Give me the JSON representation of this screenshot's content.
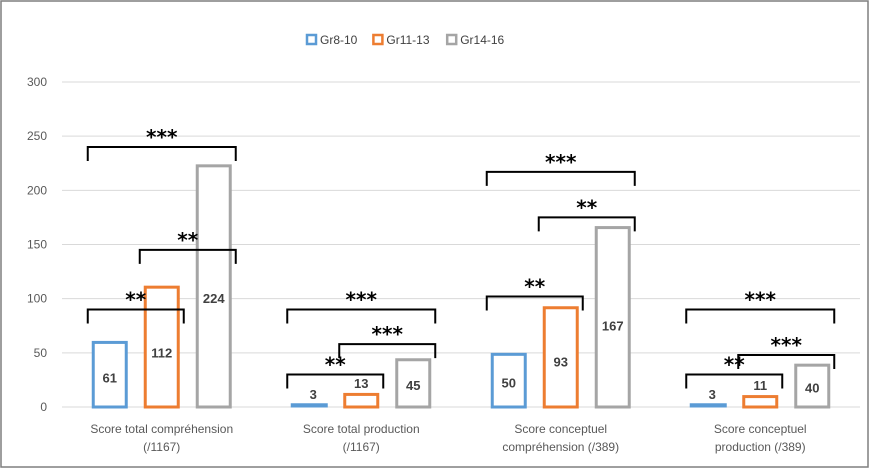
{
  "chart_data": {
    "type": "bar",
    "categories": [
      [
        "Score total compréhension",
        "(/1167)"
      ],
      [
        "Score total production",
        "(/1167)"
      ],
      [
        "Score conceptuel",
        "compréhension (/389)"
      ],
      [
        "Score conceptuel",
        "production (/389)"
      ]
    ],
    "series": [
      {
        "name": "Gr8-10",
        "values": [
          61,
          3,
          50,
          3
        ],
        "labels": [
          "61",
          "3",
          "50",
          "3"
        ]
      },
      {
        "name": "Gr11-13",
        "values": [
          112,
          13,
          93,
          11
        ],
        "labels": [
          "112",
          "13",
          "93",
          "11"
        ]
      },
      {
        "name": "Gr14-16",
        "values": [
          224,
          45,
          167,
          40
        ],
        "labels": [
          "224",
          "45",
          "167",
          "40"
        ]
      }
    ],
    "colors": {
      "Gr8-10": "#5b9bd5",
      "Gr11-13": "#ed7d31",
      "Gr14-16": "#a5a5a5"
    },
    "filled_bars": [
      [
        0,
        1
      ],
      [
        0,
        3
      ]
    ],
    "ylim": [
      0,
      300
    ],
    "yticks": [
      "0",
      "50",
      "100",
      "150",
      "200",
      "250",
      "300"
    ],
    "grid": true,
    "legend_position": "top",
    "significance": [
      {
        "category": 0,
        "from": 0,
        "to": 1,
        "label": "**",
        "level": 90
      },
      {
        "category": 0,
        "from": 1,
        "to": 2,
        "label": "**",
        "level": 145
      },
      {
        "category": 0,
        "from": 0,
        "to": 2,
        "label": "***",
        "level": 240
      },
      {
        "category": 1,
        "from": 0,
        "to": 1,
        "label": "**",
        "level": 30
      },
      {
        "category": 1,
        "from": 1,
        "to": 2,
        "label": "***",
        "level": 58
      },
      {
        "category": 1,
        "from": 0,
        "to": 2,
        "label": "***",
        "level": 90
      },
      {
        "category": 2,
        "from": 0,
        "to": 1,
        "label": "**",
        "level": 102
      },
      {
        "category": 2,
        "from": 1,
        "to": 2,
        "label": "**",
        "level": 175
      },
      {
        "category": 2,
        "from": 0,
        "to": 2,
        "label": "***",
        "level": 217
      },
      {
        "category": 3,
        "from": 0,
        "to": 1,
        "label": "**",
        "level": 30
      },
      {
        "category": 3,
        "from": 1,
        "to": 2,
        "label": "***",
        "level": 48
      },
      {
        "category": 3,
        "from": 0,
        "to": 2,
        "label": "***",
        "level": 90
      }
    ]
  }
}
